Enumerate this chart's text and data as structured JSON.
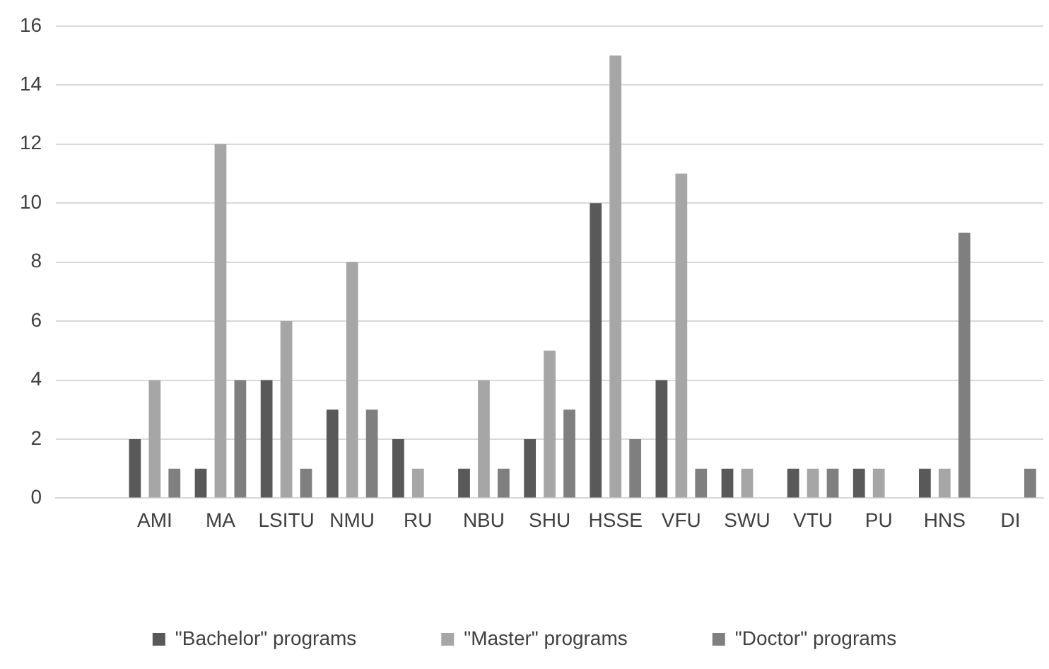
{
  "chart_data": {
    "type": "bar",
    "categories": [
      null,
      "AMI",
      "MA",
      "LSITU",
      "NMU",
      "RU",
      "NBU",
      "SHU",
      "HSSE",
      "VFU",
      "SWU",
      "VTU",
      "PU",
      "HNS",
      "DI"
    ],
    "series": [
      {
        "name": "\"Bachelor\" programs",
        "color": "#595959",
        "values": [
          null,
          2,
          1,
          4,
          3,
          2,
          1,
          2,
          10,
          4,
          1,
          1,
          1,
          1,
          0
        ]
      },
      {
        "name": "\"Master\" programs",
        "color": "#a6a6a6",
        "values": [
          null,
          4,
          12,
          6,
          8,
          1,
          4,
          5,
          15,
          11,
          1,
          1,
          1,
          1,
          0
        ]
      },
      {
        "name": "\"Doctor\" programs",
        "color": "#7f7f7f",
        "values": [
          null,
          1,
          4,
          1,
          3,
          0,
          1,
          3,
          2,
          1,
          0,
          1,
          0,
          9,
          1
        ]
      }
    ],
    "ylim": [
      0,
      16
    ],
    "yticks": [
      0,
      2,
      4,
      6,
      8,
      10,
      12,
      14,
      16
    ],
    "grid": "y",
    "legend": "bottom"
  }
}
